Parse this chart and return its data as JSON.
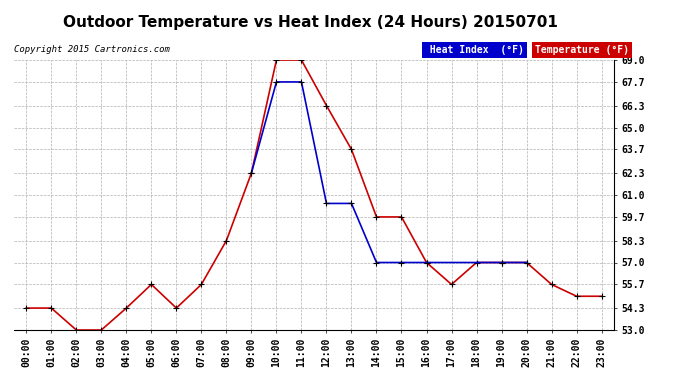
{
  "title": "Outdoor Temperature vs Heat Index (24 Hours) 20150701",
  "copyright_text": "Copyright 2015 Cartronics.com",
  "background_color": "#ffffff",
  "plot_background_color": "#ffffff",
  "grid_color": "#b0b0b0",
  "x_labels": [
    "00:00",
    "01:00",
    "02:00",
    "03:00",
    "04:00",
    "05:00",
    "06:00",
    "07:00",
    "08:00",
    "09:00",
    "10:00",
    "11:00",
    "12:00",
    "13:00",
    "14:00",
    "15:00",
    "16:00",
    "17:00",
    "18:00",
    "19:00",
    "20:00",
    "21:00",
    "22:00",
    "23:00"
  ],
  "temperature": [
    54.3,
    54.3,
    53.0,
    53.0,
    54.3,
    55.7,
    54.3,
    55.7,
    58.3,
    62.3,
    69.0,
    69.0,
    66.3,
    63.7,
    59.7,
    59.7,
    57.0,
    55.7,
    57.0,
    57.0,
    57.0,
    55.7,
    55.0,
    55.0
  ],
  "heat_index_x": [
    9,
    10,
    11,
    12,
    13,
    14,
    15,
    16,
    19,
    20
  ],
  "heat_index": [
    62.3,
    67.7,
    67.7,
    60.5,
    60.5,
    57.0,
    57.0,
    57.0,
    57.0,
    57.0
  ],
  "temp_color": "#cc0000",
  "heat_color": "#0000cc",
  "marker_color": "#000000",
  "ylim_min": 53.0,
  "ylim_max": 69.0,
  "yticks": [
    53.0,
    54.3,
    55.7,
    57.0,
    58.3,
    59.7,
    61.0,
    62.3,
    63.7,
    65.0,
    66.3,
    67.7,
    69.0
  ],
  "title_fontsize": 11,
  "tick_fontsize": 7,
  "copyright_fontsize": 6.5,
  "legend_heat_bg": "#0000cc",
  "legend_temp_bg": "#cc0000",
  "legend_text_color": "#ffffff",
  "legend_fontsize": 7
}
